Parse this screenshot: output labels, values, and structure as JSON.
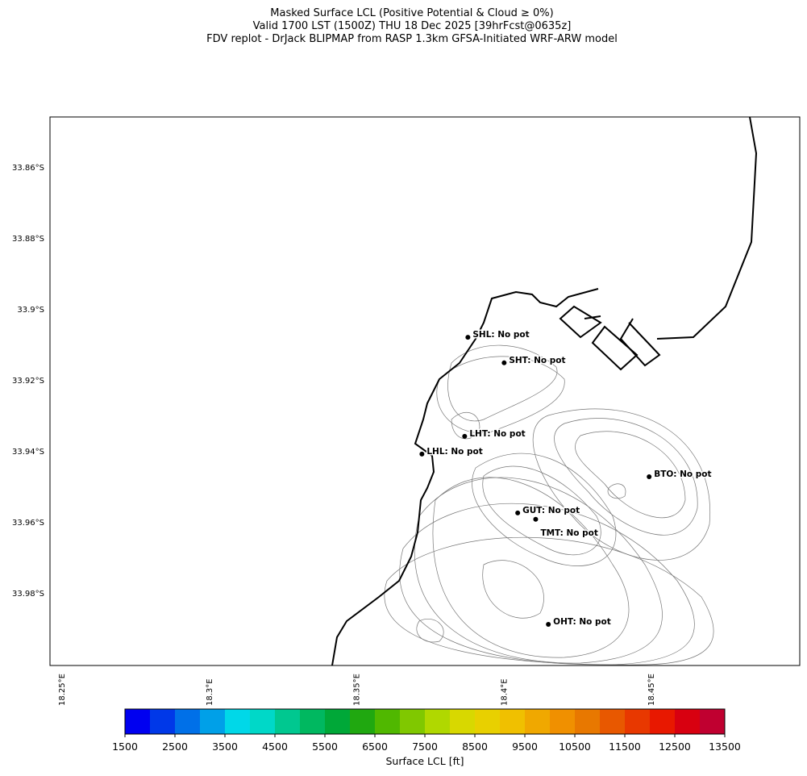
{
  "title": [
    "Masked Surface LCL (Positive Potential & Cloud ≥ 0%)",
    "Valid 1700 LST (1500Z) THU 18 Dec 2025 [39hrFcst@0635z]",
    "FDV replot - DrJack BLIPMAP from RASP 1.3km GFSA-Initiated WRF-ARW model"
  ],
  "map": {
    "xlim": [
      18.2459,
      18.5003
    ],
    "ylim": [
      -34.0005,
      -33.8459
    ],
    "xticks": [
      {
        "value": 18.25,
        "label": "18.25°E"
      },
      {
        "value": 18.3,
        "label": "18.3°E"
      },
      {
        "value": 18.35,
        "label": "18.35°E"
      },
      {
        "value": 18.4,
        "label": "18.4°E"
      },
      {
        "value": 18.45,
        "label": "18.45°E"
      }
    ],
    "yticks": [
      {
        "value": -33.86,
        "label": "33.86°S"
      },
      {
        "value": -33.88,
        "label": "33.88°S"
      },
      {
        "value": -33.9,
        "label": "33.9°S"
      },
      {
        "value": -33.92,
        "label": "33.92°S"
      },
      {
        "value": -33.94,
        "label": "33.94°S"
      },
      {
        "value": -33.96,
        "label": "33.96°S"
      },
      {
        "value": -33.98,
        "label": "33.98°S"
      }
    ],
    "stations": [
      {
        "label": "SHL: No pot",
        "lon": 18.3877,
        "lat": -33.908
      },
      {
        "label": "SHT: No pot",
        "lon": 18.4,
        "lat": -33.9152
      },
      {
        "label": "LHT: No pot",
        "lon": 18.3866,
        "lat": -33.9359
      },
      {
        "label": "LHL: No pot",
        "lon": 18.3721,
        "lat": -33.9409
      },
      {
        "label": "BTO: No pot",
        "lon": 18.4492,
        "lat": -33.9473
      },
      {
        "label": "GUT: No pot",
        "lon": 18.4046,
        "lat": -33.9575
      },
      {
        "label": "TMT: No pot",
        "lon": 18.4107,
        "lat": -33.9593
      },
      {
        "label": "OHT: No pot",
        "lon": 18.415,
        "lat": -33.9889
      }
    ]
  },
  "colorbar": {
    "label": "Surface LCL [ft]",
    "lim": [
      1500,
      13500
    ],
    "ticks": [
      1500,
      2500,
      3500,
      4500,
      5500,
      6500,
      7500,
      8500,
      9500,
      10500,
      11500,
      12500,
      13500
    ],
    "colors": [
      "#0000f0",
      "#0038e8",
      "#0070e8",
      "#00a0e8",
      "#00d8e8",
      "#00d8c8",
      "#00c890",
      "#00b860",
      "#00a838",
      "#20a810",
      "#50b800",
      "#80c800",
      "#b0d800",
      "#d8d800",
      "#e8d000",
      "#f0c000",
      "#f0a800",
      "#f09000",
      "#e87800",
      "#e85800",
      "#e83800",
      "#e81800",
      "#d80010",
      "#c00030"
    ]
  }
}
